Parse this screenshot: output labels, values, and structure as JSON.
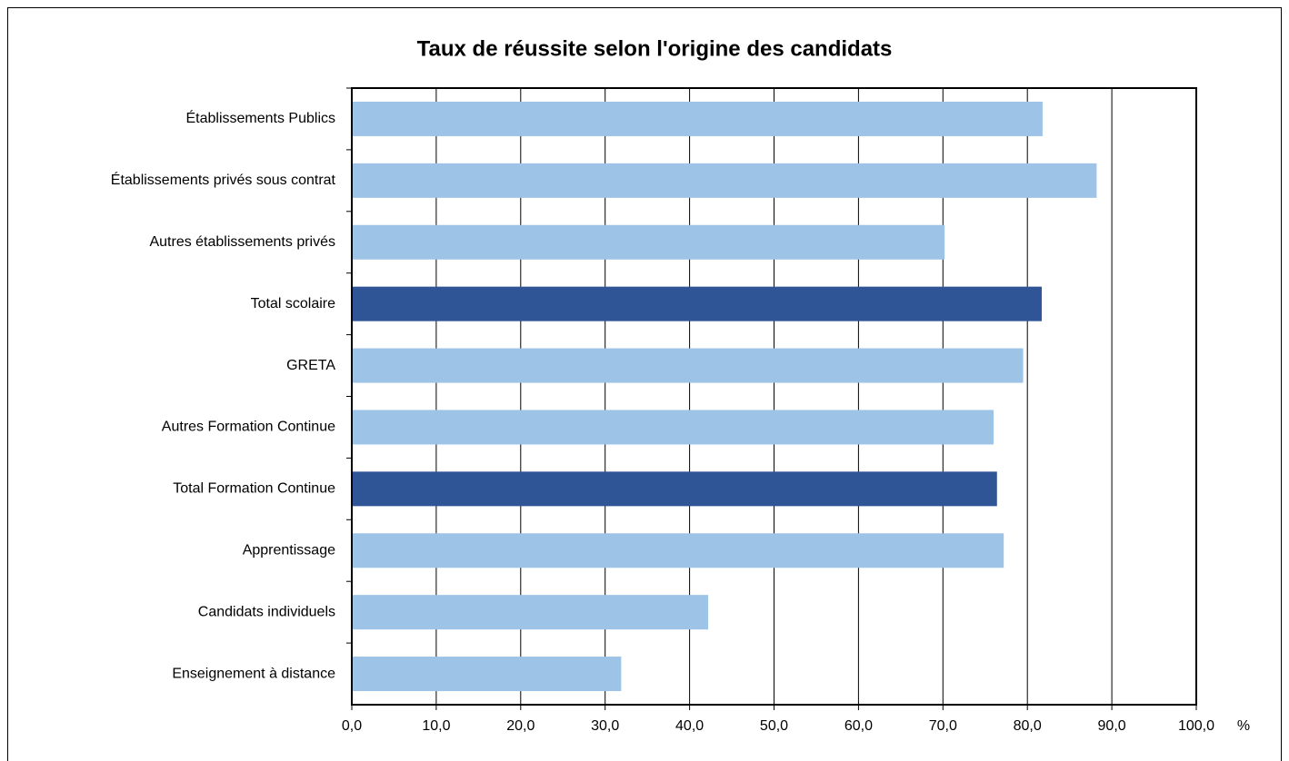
{
  "chart_data": {
    "type": "bar",
    "orientation": "horizontal",
    "title": "Taux de réussite selon l'origine des candidats",
    "xlabel": "%",
    "categories": [
      "Établissements Publics",
      "Établissements privés sous contrat",
      "Autres établissements privés",
      "Total scolaire",
      "GRETA",
      "Autres Formation Continue",
      "Total Formation Continue",
      "Apprentissage",
      "Candidats individuels",
      "Enseignement à distance"
    ],
    "values": [
      81.8,
      88.2,
      70.2,
      81.7,
      79.5,
      76.0,
      76.4,
      77.2,
      42.2,
      31.9
    ],
    "colors": [
      "#9dc3e6",
      "#9dc3e6",
      "#9dc3e6",
      "#2f5597",
      "#9dc3e6",
      "#9dc3e6",
      "#2f5597",
      "#9dc3e6",
      "#9dc3e6",
      "#9dc3e6"
    ],
    "xlim": [
      0,
      100
    ],
    "xticks": [
      {
        "value": 0,
        "label": "0,0"
      },
      {
        "value": 10,
        "label": "10,0"
      },
      {
        "value": 20,
        "label": "20,0"
      },
      {
        "value": 30,
        "label": "30,0"
      },
      {
        "value": 40,
        "label": "40,0"
      },
      {
        "value": 50,
        "label": "50,0"
      },
      {
        "value": 60,
        "label": "60,0"
      },
      {
        "value": 70,
        "label": "70,0"
      },
      {
        "value": 80,
        "label": "80,0"
      },
      {
        "value": 90,
        "label": "90,0"
      },
      {
        "value": 100,
        "label": "100,0"
      }
    ],
    "grid": true
  }
}
